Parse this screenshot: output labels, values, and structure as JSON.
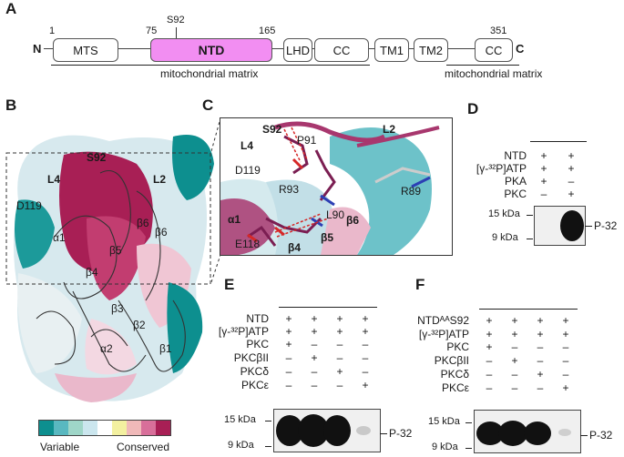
{
  "panels": {
    "A": "A",
    "B": "B",
    "C": "C",
    "D": "D",
    "E": "E",
    "F": "F"
  },
  "panelA": {
    "n_term": "N",
    "c_term": "C",
    "positions": {
      "p1": "1",
      "p75": "75",
      "p_s92": "S92",
      "p165": "165",
      "p351": "351"
    },
    "domains": [
      "MTS",
      "NTD",
      "LHD",
      "CC",
      "TM1",
      "TM2",
      "CC"
    ],
    "matrix_left": "mitochondrial matrix",
    "matrix_right": "mitochondrial matrix"
  },
  "panelB": {
    "labels": {
      "s92": "S92",
      "l4": "L4",
      "l2": "L2",
      "d119": "D119",
      "b6": "β6",
      "b5": "β5",
      "b4": "β4",
      "a1": "α1",
      "b3": "β3",
      "b2": "β2",
      "a2": "α2",
      "b1": "β1"
    },
    "scale": {
      "left": "Variable",
      "right": "Conserved",
      "colors": [
        "#0d8f8f",
        "#59b8c0",
        "#9fd6c8",
        "#cbe6ee",
        "#ffffff",
        "#f3f0a0",
        "#f0b9b9",
        "#d86f9a",
        "#a81f55"
      ]
    }
  },
  "panelC": {
    "labels": {
      "s92": "S92",
      "p91": "P91",
      "l4": "L4",
      "l2": "L2",
      "d119": "D119",
      "r93": "R93",
      "r89": "R89",
      "l90": "L90",
      "b6": "β6",
      "a1": "α1",
      "b5": "β5",
      "e118": "E118",
      "b4": "β4"
    }
  },
  "panelD": {
    "rows": [
      {
        "label": "NTD",
        "values": [
          "+",
          "+"
        ]
      },
      {
        "label": "[γ-³²P]ATP",
        "values": [
          "+",
          "+"
        ]
      },
      {
        "label": "PKA",
        "values": [
          "+",
          "–"
        ]
      },
      {
        "label": "PKC",
        "values": [
          "–",
          "+"
        ]
      }
    ],
    "markers": [
      "15 kDa",
      "9 kDa"
    ],
    "band_label": "P-32"
  },
  "panelE": {
    "rows": [
      {
        "label": "NTD",
        "values": [
          "+",
          "+",
          "+",
          "+"
        ]
      },
      {
        "label": "[γ-³²P]ATP",
        "values": [
          "+",
          "+",
          "+",
          "+"
        ]
      },
      {
        "label": "PKC",
        "values": [
          "+",
          "–",
          "–",
          "–"
        ]
      },
      {
        "label": "PKCβII",
        "values": [
          "–",
          "+",
          "–",
          "–"
        ]
      },
      {
        "label": "PKCδ",
        "values": [
          "–",
          "–",
          "+",
          "–"
        ]
      },
      {
        "label": "PKCε",
        "values": [
          "–",
          "–",
          "–",
          "+"
        ]
      }
    ],
    "markers": [
      "15 kDa",
      "9 kDa"
    ],
    "band_label": "P-32"
  },
  "panelF": {
    "rows": [
      {
        "label": "NTDᴬᴬS92",
        "values": [
          "+",
          "+",
          "+",
          "+"
        ]
      },
      {
        "label": "[γ-³²P]ATP",
        "values": [
          "+",
          "+",
          "+",
          "+"
        ]
      },
      {
        "label": "PKC",
        "values": [
          "+",
          "–",
          "–",
          "–"
        ]
      },
      {
        "label": "PKCβII",
        "values": [
          "–",
          "+",
          "–",
          "–"
        ]
      },
      {
        "label": "PKCδ",
        "values": [
          "–",
          "–",
          "+",
          "–"
        ]
      },
      {
        "label": "PKCε",
        "values": [
          "–",
          "–",
          "–",
          "+"
        ]
      }
    ],
    "markers": [
      "15 kDa",
      "9 kDa"
    ],
    "band_label": "P-32"
  }
}
